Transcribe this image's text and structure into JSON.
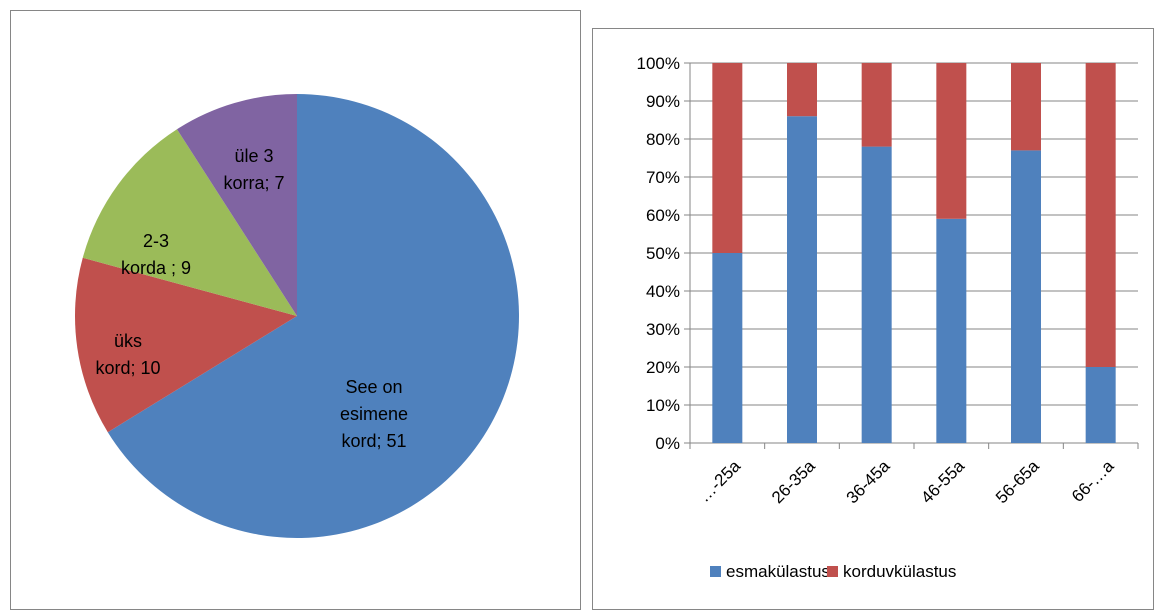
{
  "chart_data": [
    {
      "type": "pie",
      "slices": [
        {
          "label_lines": [
            "See on",
            "esimene",
            "kord; 51"
          ],
          "value": 51,
          "color": "#4F81BD"
        },
        {
          "label_lines": [
            "üks",
            "kord; 10"
          ],
          "value": 10,
          "color": "#C0504D"
        },
        {
          "label_lines": [
            "2-3",
            "korda ; 9"
          ],
          "value": 9,
          "color": "#9BBB59"
        },
        {
          "label_lines": [
            "üle 3",
            "korra; 7"
          ],
          "value": 7,
          "color": "#8064A2"
        }
      ]
    },
    {
      "type": "bar",
      "stacked": "percent",
      "categories": [
        "…-25a",
        "26-35a",
        "36-45a",
        "46-55a",
        "56-65a",
        "66-…a"
      ],
      "series": [
        {
          "name": "esmakülastus",
          "color": "#4F81BD",
          "values": [
            50,
            86,
            78,
            59,
            77,
            20
          ]
        },
        {
          "name": "korduvkülastus",
          "color": "#C0504D",
          "values": [
            50,
            14,
            22,
            41,
            23,
            80
          ]
        }
      ],
      "ylim": [
        0,
        100
      ],
      "y_ticks": [
        "0%",
        "10%",
        "20%",
        "30%",
        "40%",
        "50%",
        "60%",
        "70%",
        "80%",
        "90%",
        "100%"
      ],
      "grid": true,
      "legend": "bottom"
    }
  ]
}
